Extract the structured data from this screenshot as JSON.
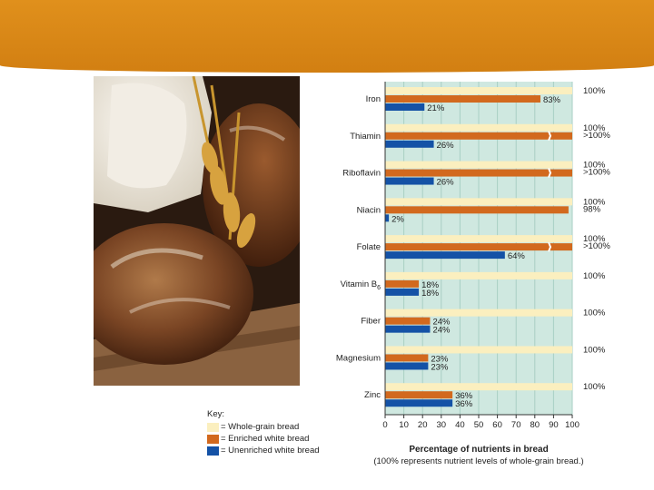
{
  "colors": {
    "header": "#d98614",
    "whole": "#fbefbf",
    "enriched": "#d2691e",
    "unenriched": "#1452a6",
    "plotBg": "#cfe8e0"
  },
  "key": {
    "title": "Key:",
    "items": [
      {
        "label": "= Whole-grain bread",
        "color": "#fbefbf"
      },
      {
        "label": "= Enriched white bread",
        "color": "#d2691e"
      },
      {
        "label": "= Unenriched white bread",
        "color": "#1452a6"
      }
    ]
  },
  "chart_data": {
    "type": "bar",
    "orientation": "horizontal",
    "categories": [
      "Iron",
      "Thiamin",
      "Riboflavin",
      "Niacin",
      "Folate",
      "Vitamin B6",
      "Fiber",
      "Magnesium",
      "Zinc"
    ],
    "series": [
      {
        "name": "Whole-grain bread",
        "values": [
          100,
          100,
          100,
          100,
          100,
          100,
          100,
          100,
          100
        ],
        "labels": [
          "100%",
          "100%",
          "100%",
          "100%",
          "100%",
          "100%",
          "100%",
          "100%",
          "100%"
        ]
      },
      {
        "name": "Enriched white bread",
        "values": [
          83,
          100,
          100,
          98,
          100,
          18,
          24,
          23,
          36
        ],
        "labels": [
          "83%",
          ">100%",
          ">100%",
          "98%",
          ">100%",
          "18%",
          "24%",
          "23%",
          "36%"
        ]
      },
      {
        "name": "Unenriched white bread",
        "values": [
          21,
          26,
          26,
          2,
          64,
          18,
          24,
          23,
          36
        ],
        "labels": [
          "21%",
          "26%",
          "26%",
          "2%",
          "64%",
          "18%",
          "24%",
          "23%",
          "36%"
        ]
      }
    ],
    "xlim": [
      0,
      100
    ],
    "xticks": [
      0,
      10,
      20,
      30,
      40,
      50,
      60,
      70,
      80,
      90,
      100
    ],
    "xlabel": "Percentage of nutrients in bread",
    "subtitle": "(100% represents nutrient levels of whole-grain bread.)",
    "grid": true
  }
}
